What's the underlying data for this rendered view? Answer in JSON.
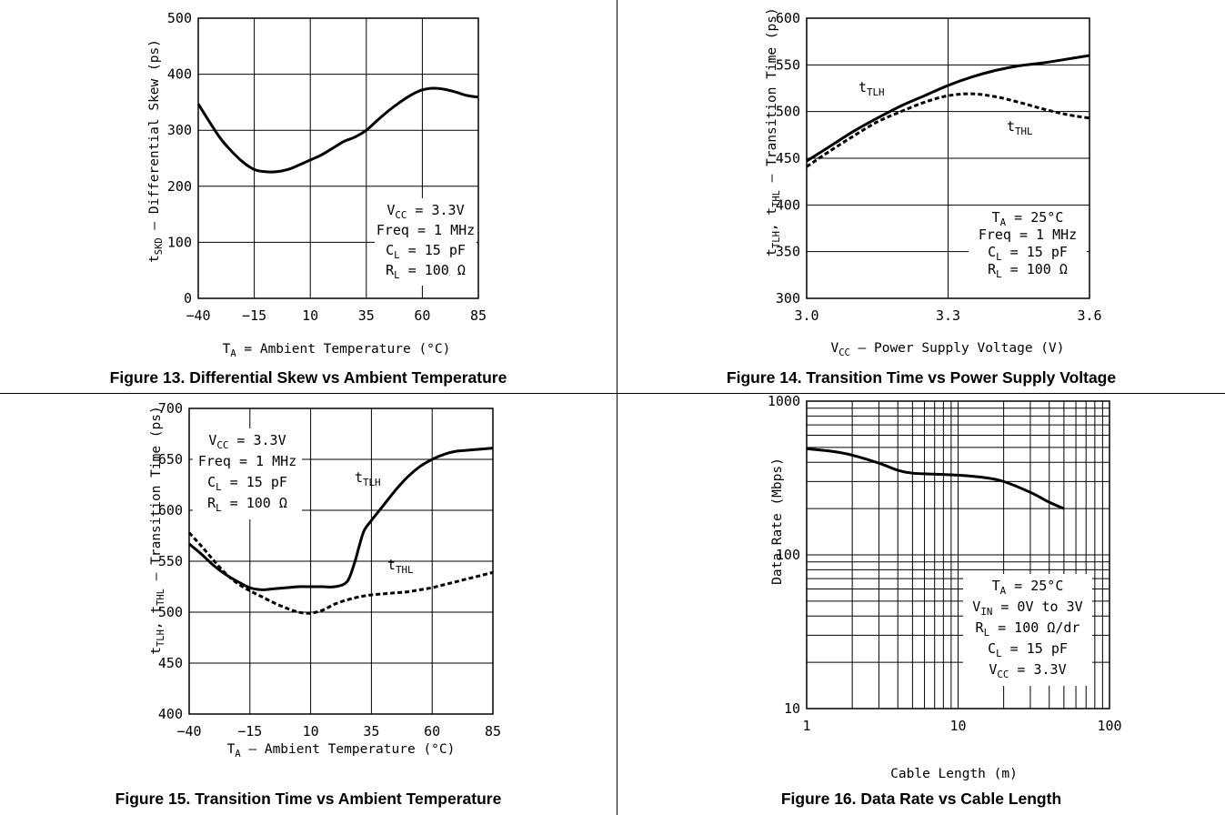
{
  "charts": [
    {
      "caption": "Figure 13. Differential Skew vs Ambient Temperature",
      "chart_data": {
        "type": "line",
        "xlabel": "T_A = Ambient Temperature (°C)",
        "ylabel": "t_SKD – Differential Skew (ps)",
        "xlim": [
          -40,
          85
        ],
        "ylim": [
          0,
          500
        ],
        "xticks": [
          "−40",
          "−15",
          "10",
          "35",
          "60",
          "85"
        ],
        "yticks": [
          "0",
          "100",
          "200",
          "300",
          "400",
          "500"
        ],
        "grid": true,
        "annotations": [
          "V_CC = 3.3V",
          "Freq = 1 MHz",
          "C_L = 15 pF",
          "R_L = 100 Ω"
        ],
        "series": [
          {
            "style": "solid",
            "x": [
              -40,
              -35,
              -30,
              -25,
              -20,
              -15,
              -10,
              -5,
              0,
              5,
              10,
              15,
              20,
              25,
              30,
              35,
              40,
              45,
              50,
              55,
              60,
              65,
              70,
              75,
              80,
              85
            ],
            "y": [
              347,
              315,
              285,
              262,
              243,
              230,
              226,
              226,
              230,
              238,
              247,
              256,
              268,
              280,
              288,
              300,
              318,
              335,
              350,
              363,
              372,
              375,
              373,
              368,
              362,
              359
            ]
          }
        ]
      }
    },
    {
      "caption": "Figure 14. Transition Time vs Power Supply Voltage",
      "chart_data": {
        "type": "line",
        "xlabel": "V_CC – Power Supply Voltage (V)",
        "ylabel": "t_TLH, t_THL – Transition Time (ps)",
        "xlim": [
          3.0,
          3.6
        ],
        "ylim": [
          300,
          600
        ],
        "xticks": [
          "3.0",
          "3.3",
          "3.6"
        ],
        "yticks": [
          "300",
          "350",
          "400",
          "450",
          "500",
          "550",
          "600"
        ],
        "grid": true,
        "annotations": [
          "T_A = 25°C",
          "Freq = 1 MHz",
          "C_L = 15 pF",
          "R_L = 100 Ω"
        ],
        "series": [
          {
            "name": "t_TLH",
            "style": "solid",
            "x": [
              3.0,
              3.05,
              3.1,
              3.15,
              3.2,
              3.25,
              3.3,
              3.35,
              3.4,
              3.45,
              3.5,
              3.55,
              3.6
            ],
            "y": [
              447,
              463,
              479,
              493,
              506,
              517,
              528,
              537,
              544,
              549,
              552,
              556,
              560
            ]
          },
          {
            "name": "t_THL",
            "style": "dashed",
            "x": [
              3.0,
              3.05,
              3.1,
              3.15,
              3.2,
              3.25,
              3.3,
              3.35,
              3.4,
              3.45,
              3.5,
              3.55,
              3.6
            ],
            "y": [
              441,
              458,
              474,
              489,
              500,
              510,
              517,
              519,
              516,
              510,
              503,
              497,
              493
            ]
          }
        ]
      }
    },
    {
      "caption": "Figure 15. Transition Time vs Ambient Temperature",
      "chart_data": {
        "type": "line",
        "xlabel": "T_A – Ambient Temperature (°C)",
        "ylabel": "t_TLH, t_THL – Transition Time (ps)",
        "xlim": [
          -40,
          85
        ],
        "ylim": [
          400,
          700
        ],
        "xticks": [
          "−40",
          "−15",
          "10",
          "35",
          "60",
          "85"
        ],
        "yticks": [
          "400",
          "450",
          "500",
          "550",
          "600",
          "650",
          "700"
        ],
        "grid": true,
        "annotations": [
          "V_CC = 3.3V",
          "Freq = 1 MHz",
          "C_L = 15 pF",
          "R_L = 100 Ω"
        ],
        "series": [
          {
            "name": "t_TLH",
            "style": "solid",
            "x": [
              -40,
              -35,
              -30,
              -25,
              -20,
              -15,
              -10,
              -5,
              0,
              5,
              10,
              15,
              20,
              25,
              28,
              30,
              32,
              35,
              40,
              45,
              50,
              55,
              60,
              65,
              70,
              75,
              80,
              85
            ],
            "y": [
              567,
              557,
              546,
              537,
              530,
              524,
              522,
              523,
              524,
              525,
              525,
              525,
              525,
              530,
              548,
              565,
              580,
              590,
              605,
              620,
              633,
              643,
              650,
              655,
              658,
              659,
              660,
              661
            ]
          },
          {
            "name": "t_THL",
            "style": "dashed",
            "x": [
              -40,
              -35,
              -30,
              -25,
              -20,
              -15,
              -10,
              -5,
              0,
              5,
              10,
              15,
              20,
              25,
              30,
              35,
              40,
              45,
              50,
              55,
              60,
              65,
              70,
              75,
              80,
              85
            ],
            "y": [
              578,
              565,
              551,
              538,
              528,
              521,
              515,
              509,
              504,
              500,
              499,
              502,
              508,
              512,
              515,
              517,
              518,
              519,
              520,
              522,
              524,
              527,
              530,
              533,
              536,
              539
            ]
          }
        ]
      }
    },
    {
      "caption": "Figure 16. Data Rate vs Cable Length",
      "chart_data": {
        "type": "line",
        "xlabel": "Cable Length (m)",
        "ylabel": "Data Rate (Mbps)",
        "xscale": "log",
        "yscale": "log",
        "xlim": [
          1,
          100
        ],
        "ylim": [
          10,
          1000
        ],
        "xticks": [
          "1",
          "10",
          "100"
        ],
        "yticks": [
          "10",
          "100",
          "1000"
        ],
        "grid": true,
        "annotations": [
          "T_A = 25°C",
          "V_IN = 0V to 3V",
          "R_L = 100 Ω/dr",
          "C_L = 15 pF",
          "V_CC = 3.3V"
        ],
        "series": [
          {
            "style": "solid",
            "x": [
              1,
              1.5,
              2,
              3,
              4,
              5,
              7,
              10,
              15,
              20,
              30,
              40,
              50
            ],
            "y": [
              490,
              470,
              445,
              395,
              355,
              340,
              335,
              330,
              318,
              300,
              255,
              220,
              200
            ]
          }
        ]
      }
    }
  ]
}
